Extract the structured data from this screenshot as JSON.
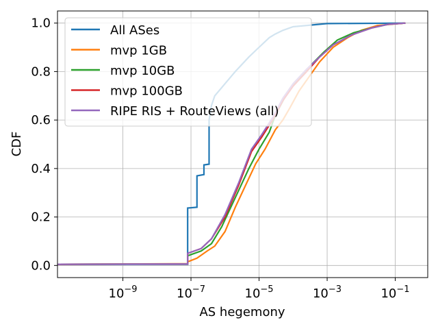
{
  "chart_data": {
    "type": "line",
    "xlabel": "AS hegemony",
    "ylabel": "CDF",
    "x_scale": "log",
    "xlim": [
      1.2e-11,
      0.9
    ],
    "ylim": [
      -0.05,
      1.05
    ],
    "grid": true,
    "legend_placement": "upper-left",
    "x_ticks": [
      {
        "value": 1e-09,
        "base": "10",
        "exp": "−9"
      },
      {
        "value": 1e-07,
        "base": "10",
        "exp": "−7"
      },
      {
        "value": 1e-05,
        "base": "10",
        "exp": "−5"
      },
      {
        "value": 0.001,
        "base": "10",
        "exp": "−3"
      },
      {
        "value": 0.1,
        "base": "10",
        "exp": "−1"
      }
    ],
    "y_ticks": [
      {
        "value": 0.0,
        "label": "0.0"
      },
      {
        "value": 0.2,
        "label": "0.2"
      },
      {
        "value": 0.4,
        "label": "0.4"
      },
      {
        "value": 0.6,
        "label": "0.6"
      },
      {
        "value": 0.8,
        "label": "0.8"
      },
      {
        "value": 1.0,
        "label": "1.0"
      }
    ],
    "series": [
      {
        "name": "All ASes",
        "color": "#1f77b4",
        "points": [
          [
            1.2e-11,
            0.005
          ],
          [
            8e-08,
            0.005
          ],
          [
            8e-08,
            0.237
          ],
          [
            1.5e-07,
            0.24
          ],
          [
            1.5e-07,
            0.37
          ],
          [
            2.4e-07,
            0.375
          ],
          [
            2.4e-07,
            0.415
          ],
          [
            3.4e-07,
            0.418
          ],
          [
            3.4e-07,
            0.6
          ],
          [
            4e-07,
            0.66
          ],
          [
            5e-07,
            0.7
          ],
          [
            1e-06,
            0.75
          ],
          [
            2e-06,
            0.8
          ],
          [
            5e-06,
            0.86
          ],
          [
            1e-05,
            0.9
          ],
          [
            2e-05,
            0.94
          ],
          [
            3e-05,
            0.955
          ],
          [
            5e-05,
            0.97
          ],
          [
            0.0001,
            0.985
          ],
          [
            0.001,
            0.998
          ],
          [
            0.2,
            1.0
          ]
        ]
      },
      {
        "name": "mvp 1GB",
        "color": "#ff7f0e",
        "points": [
          [
            1.2e-11,
            0.005
          ],
          [
            8e-08,
            0.007
          ],
          [
            8e-08,
            0.015
          ],
          [
            1.5e-07,
            0.03
          ],
          [
            3e-07,
            0.06
          ],
          [
            5e-07,
            0.08
          ],
          [
            1e-06,
            0.14
          ],
          [
            2e-06,
            0.24
          ],
          [
            4e-06,
            0.33
          ],
          [
            8e-06,
            0.42
          ],
          [
            1.5e-05,
            0.48
          ],
          [
            3e-05,
            0.56
          ],
          [
            5e-05,
            0.6
          ],
          [
            8e-05,
            0.65
          ],
          [
            0.00015,
            0.72
          ],
          [
            0.0003,
            0.78
          ],
          [
            0.0006,
            0.84
          ],
          [
            0.0015,
            0.9
          ],
          [
            0.004,
            0.94
          ],
          [
            0.01,
            0.97
          ],
          [
            0.03,
            0.99
          ],
          [
            0.2,
            1.0
          ]
        ]
      },
      {
        "name": "mvp 10GB",
        "color": "#2ca02c",
        "points": [
          [
            1.2e-11,
            0.005
          ],
          [
            8e-08,
            0.006
          ],
          [
            8e-08,
            0.04
          ],
          [
            2e-07,
            0.06
          ],
          [
            4e-07,
            0.09
          ],
          [
            8e-07,
            0.16
          ],
          [
            2e-06,
            0.28
          ],
          [
            5e-06,
            0.4
          ],
          [
            1e-05,
            0.48
          ],
          [
            2e-05,
            0.55
          ],
          [
            3e-05,
            0.62
          ],
          [
            6e-05,
            0.7
          ],
          [
            0.00012,
            0.76
          ],
          [
            0.0003,
            0.82
          ],
          [
            0.0008,
            0.88
          ],
          [
            0.002,
            0.93
          ],
          [
            0.006,
            0.96
          ],
          [
            0.02,
            0.98
          ],
          [
            0.06,
            0.995
          ],
          [
            0.2,
            1.0
          ]
        ]
      },
      {
        "name": "mvp 100GB",
        "color": "#d62728",
        "points": [
          [
            1.2e-11,
            0.005
          ],
          [
            8e-08,
            0.006
          ],
          [
            8e-08,
            0.05
          ],
          [
            2e-07,
            0.07
          ],
          [
            4e-07,
            0.11
          ],
          [
            1e-06,
            0.2
          ],
          [
            2.5e-06,
            0.33
          ],
          [
            6e-06,
            0.47
          ],
          [
            1.2e-05,
            0.53
          ],
          [
            2.5e-05,
            0.6
          ],
          [
            5e-05,
            0.68
          ],
          [
            0.0001,
            0.74
          ],
          [
            0.00025,
            0.8
          ],
          [
            0.0006,
            0.86
          ],
          [
            0.0015,
            0.91
          ],
          [
            0.005,
            0.95
          ],
          [
            0.02,
            0.98
          ],
          [
            0.06,
            0.995
          ],
          [
            0.2,
            1.0
          ]
        ]
      },
      {
        "name": "RIPE RIS + RouteViews (all)",
        "color": "#9467bd",
        "points": [
          [
            1.2e-11,
            0.005
          ],
          [
            8e-08,
            0.006
          ],
          [
            8e-08,
            0.05
          ],
          [
            2e-07,
            0.07
          ],
          [
            4e-07,
            0.11
          ],
          [
            1e-06,
            0.21
          ],
          [
            2.5e-06,
            0.34
          ],
          [
            6e-06,
            0.48
          ],
          [
            1.2e-05,
            0.54
          ],
          [
            2.5e-05,
            0.61
          ],
          [
            5e-05,
            0.69
          ],
          [
            0.0001,
            0.75
          ],
          [
            0.00025,
            0.81
          ],
          [
            0.0006,
            0.86
          ],
          [
            0.0015,
            0.91
          ],
          [
            0.005,
            0.95
          ],
          [
            0.02,
            0.98
          ],
          [
            0.06,
            0.995
          ],
          [
            0.2,
            1.0
          ]
        ]
      }
    ]
  }
}
